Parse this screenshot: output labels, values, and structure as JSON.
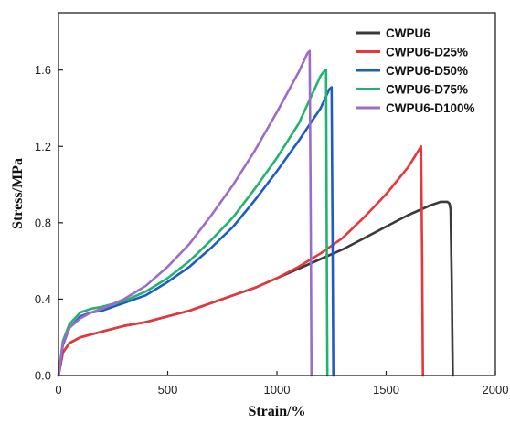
{
  "chart_data": {
    "type": "line",
    "xlabel": "Strain/%",
    "ylabel": "Stress/MPa",
    "xlim": [
      0,
      2000
    ],
    "ylim": [
      0,
      1.9
    ],
    "xticks": [
      0,
      500,
      1000,
      1500,
      2000
    ],
    "xtick_labels": [
      "0",
      "500",
      "1000",
      "1500",
      "2000"
    ],
    "yticks": [
      0.0,
      0.4,
      0.8,
      1.2,
      1.6
    ],
    "ytick_labels": [
      "0.0",
      "0.4",
      "0.8",
      "1.2",
      "1.6"
    ],
    "grid": false,
    "legend_position": "top-right",
    "series": [
      {
        "name": "CWPU6",
        "color": "#3a3a3a",
        "x": [
          0,
          20,
          50,
          100,
          200,
          300,
          400,
          500,
          600,
          700,
          800,
          900,
          1000,
          1100,
          1200,
          1300,
          1400,
          1500,
          1600,
          1700,
          1750,
          1780,
          1790,
          1795,
          1800,
          1805
        ],
        "y": [
          0,
          0.12,
          0.17,
          0.2,
          0.23,
          0.26,
          0.28,
          0.31,
          0.34,
          0.38,
          0.42,
          0.46,
          0.51,
          0.56,
          0.61,
          0.66,
          0.72,
          0.78,
          0.84,
          0.89,
          0.91,
          0.91,
          0.9,
          0.87,
          0.5,
          0
        ]
      },
      {
        "name": "CWPU6-D25%",
        "color": "#e8363a",
        "x": [
          0,
          20,
          50,
          100,
          200,
          300,
          400,
          500,
          600,
          700,
          800,
          900,
          1000,
          1100,
          1200,
          1300,
          1400,
          1500,
          1600,
          1660,
          1665,
          1668
        ],
        "y": [
          0,
          0.12,
          0.17,
          0.2,
          0.23,
          0.26,
          0.28,
          0.31,
          0.34,
          0.38,
          0.42,
          0.46,
          0.51,
          0.57,
          0.64,
          0.72,
          0.83,
          0.95,
          1.09,
          1.2,
          0.6,
          0
        ]
      },
      {
        "name": "CWPU6-D50%",
        "color": "#1f5bc4",
        "x": [
          0,
          20,
          50,
          100,
          150,
          200,
          300,
          400,
          500,
          600,
          700,
          800,
          900,
          1000,
          1100,
          1200,
          1240,
          1250,
          1255,
          1258
        ],
        "y": [
          0,
          0.16,
          0.25,
          0.31,
          0.33,
          0.34,
          0.38,
          0.42,
          0.49,
          0.57,
          0.67,
          0.78,
          0.92,
          1.07,
          1.23,
          1.4,
          1.5,
          1.51,
          0.7,
          0
        ]
      },
      {
        "name": "CWPU6-D75%",
        "color": "#22b36e",
        "x": [
          0,
          20,
          50,
          100,
          150,
          200,
          300,
          400,
          500,
          600,
          700,
          800,
          900,
          1000,
          1100,
          1200,
          1220,
          1225,
          1228,
          1231
        ],
        "y": [
          0,
          0.18,
          0.27,
          0.33,
          0.35,
          0.36,
          0.39,
          0.44,
          0.51,
          0.6,
          0.71,
          0.83,
          0.98,
          1.14,
          1.32,
          1.57,
          1.6,
          1.6,
          0.7,
          0
        ]
      },
      {
        "name": "CWPU6-D100%",
        "color": "#9b6cc8",
        "x": [
          0,
          20,
          50,
          100,
          150,
          200,
          300,
          400,
          500,
          600,
          700,
          800,
          900,
          1000,
          1100,
          1140,
          1150,
          1155,
          1158
        ],
        "y": [
          0,
          0.17,
          0.25,
          0.3,
          0.33,
          0.35,
          0.4,
          0.47,
          0.57,
          0.69,
          0.84,
          1.0,
          1.18,
          1.38,
          1.59,
          1.69,
          1.7,
          0.8,
          0
        ]
      }
    ]
  }
}
